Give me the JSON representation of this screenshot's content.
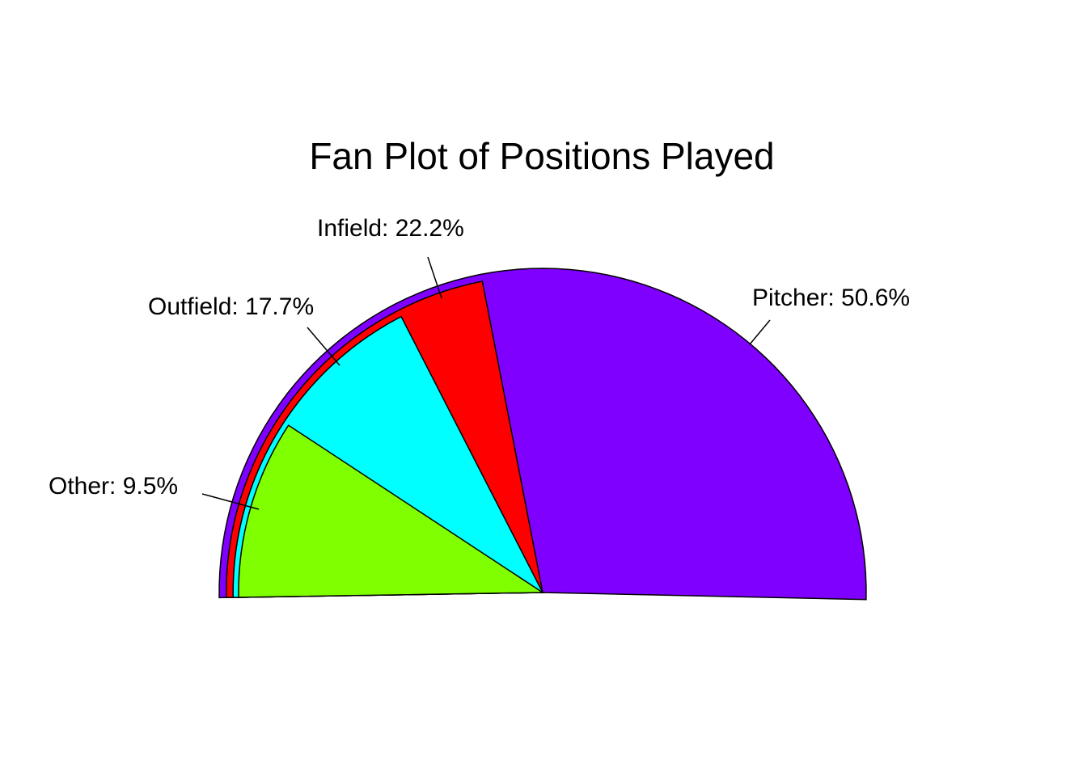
{
  "chart_data": {
    "type": "pie",
    "variant": "fan",
    "title": "Fan Plot of Positions Played",
    "categories": [
      "Pitcher",
      "Infield",
      "Outfield",
      "Other"
    ],
    "values": [
      50.6,
      22.2,
      17.7,
      9.5
    ],
    "unit": "%",
    "labels": [
      "Pitcher: 50.6%",
      "Infield: 22.2%",
      "Outfield: 17.7%",
      "Other: 9.5%"
    ],
    "colors": [
      "#8000FF",
      "#FF0000",
      "#00FFFF",
      "#80FF00"
    ],
    "legend": "none",
    "grid": false
  }
}
